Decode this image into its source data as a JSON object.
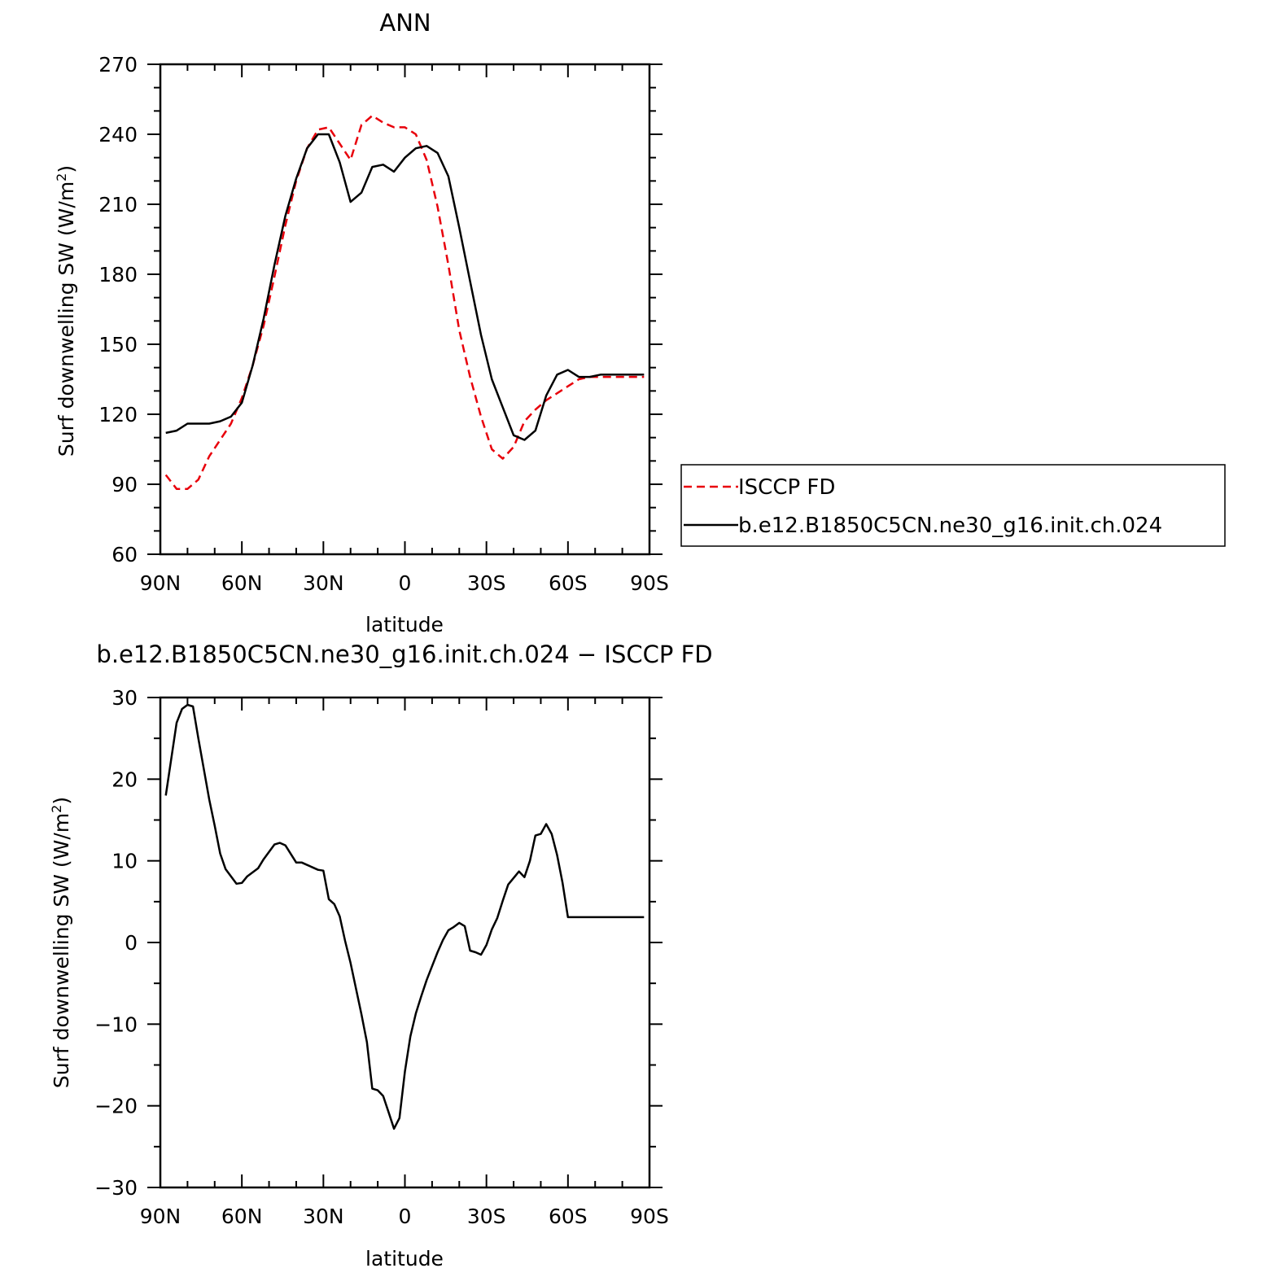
{
  "chart_data": [
    {
      "type": "line",
      "title": "ANN",
      "xlabel": "latitude",
      "ylabel": "Surf downwelling SW (W/m²)",
      "xlim": [
        90,
        -90
      ],
      "ylim": [
        60,
        270
      ],
      "x_ticks": [
        90,
        60,
        30,
        0,
        -30,
        -60,
        -90
      ],
      "x_tick_labels": [
        "90N",
        "60N",
        "30N",
        "0",
        "30S",
        "60S",
        "90S"
      ],
      "y_ticks": [
        60,
        90,
        120,
        150,
        180,
        210,
        240,
        270
      ],
      "y_tick_labels": [
        "60",
        "90",
        "120",
        "150",
        "180",
        "210",
        "240",
        "270"
      ],
      "legend": "right",
      "series": [
        {
          "name": "ISCCP FD",
          "color": "#e8000b",
          "dash": "dashed",
          "x": [
            88,
            84,
            80,
            76,
            72,
            68,
            64,
            60,
            56,
            52,
            48,
            44,
            40,
            36,
            32,
            28,
            24,
            20,
            16,
            12,
            8,
            4,
            0,
            -4,
            -8,
            -12,
            -16,
            -20,
            -24,
            -28,
            -32,
            -36,
            -40,
            -44,
            -48,
            -52,
            -56,
            -60,
            -64,
            -68,
            -72,
            -76,
            -80,
            -84,
            -88
          ],
          "y": [
            94,
            88,
            88,
            92,
            102,
            109,
            116,
            127,
            141,
            158,
            179,
            201,
            220,
            234,
            242,
            243,
            236,
            229,
            244,
            248,
            245,
            243,
            243,
            240,
            229,
            209,
            184,
            156,
            136,
            119,
            105,
            101,
            106,
            117,
            122,
            126,
            129,
            132,
            135,
            136,
            136,
            136,
            136,
            136,
            136
          ]
        },
        {
          "name": "b.e12.B1850C5CN.ne30_g16.init.ch.024",
          "color": "#000000",
          "dash": "solid",
          "x": [
            88,
            84,
            80,
            76,
            72,
            68,
            64,
            60,
            56,
            52,
            48,
            44,
            40,
            36,
            32,
            28,
            24,
            20,
            16,
            12,
            8,
            4,
            0,
            -4,
            -8,
            -12,
            -16,
            -20,
            -24,
            -28,
            -32,
            -36,
            -40,
            -44,
            -48,
            -52,
            -56,
            -60,
            -64,
            -68,
            -72,
            -76,
            -80,
            -84,
            -88
          ],
          "y": [
            112,
            113,
            116,
            116,
            116,
            117,
            119,
            125,
            141,
            161,
            184,
            205,
            221,
            234,
            240,
            240,
            228,
            211,
            215,
            226,
            227,
            224,
            230,
            234,
            235,
            232,
            222,
            200,
            177,
            154,
            135,
            123,
            111,
            109,
            113,
            128,
            137,
            139,
            136,
            136,
            137,
            137,
            137,
            137,
            137
          ]
        }
      ]
    },
    {
      "type": "line",
      "title": "b.e12.B1850C5CN.ne30_g16.init.ch.024 − ISCCP FD",
      "xlabel": "latitude",
      "ylabel": "Surf downwelling SW (W/m²)",
      "xlim": [
        90,
        -90
      ],
      "ylim": [
        -30,
        30
      ],
      "x_ticks": [
        90,
        60,
        30,
        0,
        -30,
        -60,
        -90
      ],
      "x_tick_labels": [
        "90N",
        "60N",
        "30N",
        "0",
        "30S",
        "60S",
        "90S"
      ],
      "y_ticks": [
        -30,
        -20,
        -10,
        0,
        10,
        20,
        30
      ],
      "y_tick_labels": [
        "−30",
        "−20",
        "−10",
        "0",
        "10",
        "20",
        "30"
      ],
      "series": [
        {
          "color": "#000000",
          "dash": "solid",
          "x": [
            88,
            84,
            82,
            80,
            78,
            76,
            72,
            70,
            68,
            66,
            62,
            60,
            58,
            54,
            52,
            48,
            46,
            44,
            40,
            38,
            36,
            34,
            32,
            30,
            28,
            26,
            24,
            22,
            20,
            16,
            14,
            12,
            10,
            8,
            6,
            4,
            2,
            0,
            -2,
            -4,
            -6,
            -8,
            -10,
            -12,
            -14,
            -16,
            -18,
            -20,
            -22,
            -24,
            -26,
            -28,
            -30,
            -32,
            -34,
            -36,
            -38,
            -42,
            -44,
            -46,
            -48,
            -50,
            -52,
            -54,
            -56,
            -58,
            -60,
            -62,
            -64,
            -66,
            -68,
            -70,
            -72,
            -74,
            -76,
            -78,
            -80,
            -82,
            -84,
            -86,
            -88
          ],
          "y": [
            18,
            26.9,
            28.6,
            29.1,
            28.9,
            25,
            17.5,
            14.3,
            10.9,
            9,
            7.2,
            7.3,
            8.1,
            9.1,
            10.2,
            12,
            12.2,
            11.9,
            9.8,
            9.8,
            9.5,
            9.2,
            8.9,
            8.8,
            5.3,
            4.7,
            3.2,
            0.2,
            -2.5,
            -8.8,
            -12.2,
            -17.9,
            -18.1,
            -18.8,
            -20.8,
            -22.8,
            -21.5,
            -15.8,
            -11.5,
            -8.7,
            -6.6,
            -4.6,
            -2.9,
            -1.2,
            0.3,
            1.5,
            1.9,
            2.4,
            2,
            -1,
            -1.2,
            -1.5,
            -0.3,
            1.6,
            3,
            5.1,
            7.1,
            8.7,
            8,
            10,
            13.1,
            13.3,
            14.5,
            13.3,
            10.7,
            7.3,
            3.1,
            3.1,
            3.1,
            3.1,
            3.1,
            3.1,
            3.1,
            3.1,
            3.1,
            3.1,
            3.1,
            3.1,
            3.1,
            3.1,
            3.1
          ]
        }
      ]
    }
  ]
}
